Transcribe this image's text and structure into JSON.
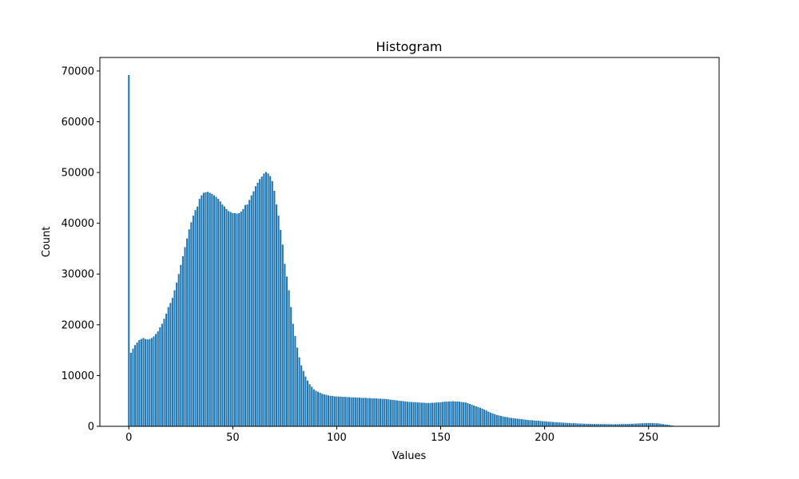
{
  "chart_data": {
    "type": "bar",
    "title": "Histogram",
    "x_label": "Values",
    "y_label": "Count",
    "color": "#1f77b4",
    "x": [
      0,
      1,
      2,
      3,
      4,
      5,
      6,
      7,
      8,
      9,
      10,
      11,
      12,
      13,
      14,
      15,
      16,
      17,
      18,
      19,
      20,
      21,
      22,
      23,
      24,
      25,
      26,
      27,
      28,
      29,
      30,
      31,
      32,
      33,
      34,
      35,
      36,
      37,
      38,
      39,
      40,
      41,
      42,
      43,
      44,
      45,
      46,
      47,
      48,
      49,
      50,
      51,
      52,
      53,
      54,
      55,
      56,
      57,
      58,
      59,
      60,
      61,
      62,
      63,
      64,
      65,
      66,
      67,
      68,
      69,
      70,
      71,
      72,
      73,
      74,
      75,
      76,
      77,
      78,
      79,
      80,
      81,
      82,
      83,
      84,
      85,
      86,
      87,
      88,
      89,
      90,
      91,
      92,
      93,
      94,
      95,
      96,
      97,
      98,
      99,
      100,
      101,
      102,
      103,
      104,
      105,
      106,
      107,
      108,
      109,
      110,
      111,
      112,
      113,
      114,
      115,
      116,
      117,
      118,
      119,
      120,
      121,
      122,
      123,
      124,
      125,
      126,
      127,
      128,
      129,
      130,
      131,
      132,
      133,
      134,
      135,
      136,
      137,
      138,
      139,
      140,
      141,
      142,
      143,
      144,
      145,
      146,
      147,
      148,
      149,
      150,
      151,
      152,
      153,
      154,
      155,
      156,
      157,
      158,
      159,
      160,
      161,
      162,
      163,
      164,
      165,
      166,
      167,
      168,
      169,
      170,
      171,
      172,
      173,
      174,
      175,
      176,
      177,
      178,
      179,
      180,
      181,
      182,
      183,
      184,
      185,
      186,
      187,
      188,
      189,
      190,
      191,
      192,
      193,
      194,
      195,
      196,
      197,
      198,
      199,
      200,
      201,
      202,
      203,
      204,
      205,
      206,
      207,
      208,
      209,
      210,
      211,
      212,
      213,
      214,
      215,
      216,
      217,
      218,
      219,
      220,
      221,
      222,
      223,
      224,
      225,
      226,
      227,
      228,
      229,
      230,
      231,
      232,
      233,
      234,
      235,
      236,
      237,
      238,
      239,
      240,
      241,
      242,
      243,
      244,
      245,
      246,
      247,
      248,
      249,
      250,
      251,
      252,
      253,
      254,
      255,
      256,
      257,
      258,
      259,
      260,
      261,
      262,
      263,
      264,
      265,
      266,
      267,
      268,
      269,
      270
    ],
    "values": [
      69200,
      14500,
      15300,
      16000,
      16500,
      17000,
      17200,
      17400,
      17200,
      17100,
      17200,
      17400,
      17700,
      18200,
      18700,
      19500,
      20200,
      21200,
      22200,
      23500,
      24300,
      25300,
      26800,
      28300,
      30000,
      31800,
      33500,
      35300,
      37000,
      38800,
      40200,
      41500,
      42600,
      43300,
      44800,
      45500,
      46000,
      46100,
      46200,
      46000,
      45800,
      45500,
      45200,
      44800,
      44300,
      43700,
      43300,
      42800,
      42400,
      42200,
      42000,
      42000,
      41900,
      42000,
      42300,
      42800,
      43600,
      43700,
      44600,
      45500,
      46300,
      47300,
      48000,
      48700,
      49200,
      49800,
      50100,
      49800,
      49300,
      48300,
      46400,
      43700,
      41500,
      38700,
      35800,
      32000,
      29500,
      26800,
      23500,
      20200,
      17800,
      15500,
      13600,
      12000,
      10900,
      9800,
      9000,
      8300,
      7800,
      7300,
      7000,
      6800,
      6600,
      6400,
      6300,
      6200,
      6100,
      6000,
      6000,
      5900,
      5900,
      5850,
      5850,
      5800,
      5800,
      5750,
      5750,
      5700,
      5700,
      5700,
      5650,
      5650,
      5600,
      5600,
      5600,
      5550,
      5550,
      5500,
      5500,
      5500,
      5450,
      5450,
      5400,
      5400,
      5350,
      5300,
      5250,
      5200,
      5150,
      5100,
      5050,
      5000,
      4950,
      4900,
      4850,
      4800,
      4800,
      4750,
      4750,
      4700,
      4700,
      4650,
      4650,
      4600,
      4600,
      4600,
      4650,
      4650,
      4700,
      4700,
      4750,
      4800,
      4850,
      4850,
      4900,
      4900,
      4950,
      4900,
      4900,
      4850,
      4800,
      4750,
      4700,
      4550,
      4400,
      4250,
      4100,
      3950,
      3800,
      3650,
      3500,
      3300,
      3100,
      2900,
      2700,
      2550,
      2400,
      2250,
      2150,
      2050,
      1950,
      1850,
      1800,
      1700,
      1650,
      1600,
      1550,
      1500,
      1450,
      1400,
      1350,
      1300,
      1250,
      1200,
      1200,
      1150,
      1100,
      1100,
      1050,
      1000,
      1000,
      950,
      900,
      900,
      850,
      800,
      800,
      750,
      750,
      700,
      700,
      650,
      650,
      600,
      600,
      600,
      550,
      550,
      550,
      500,
      500,
      500,
      480,
      470,
      460,
      450,
      450,
      440,
      440,
      430,
      430,
      430,
      420,
      420,
      420,
      430,
      430,
      440,
      450,
      460,
      470,
      480,
      500,
      520,
      540,
      560,
      580,
      600,
      620,
      630,
      640,
      640,
      630,
      610,
      590,
      560,
      500,
      440,
      380,
      320,
      250,
      180,
      120,
      80,
      60,
      40,
      30,
      20,
      15,
      10,
      5
    ],
    "bar_width": 0.8,
    "xlim": [
      -13.94,
      283.94
    ],
    "xticks": [
      0,
      50,
      100,
      150,
      200,
      250
    ],
    "ylim": [
      0,
      72660
    ],
    "yticks": [
      0,
      10000,
      20000,
      30000,
      40000,
      50000,
      60000,
      70000
    ]
  }
}
